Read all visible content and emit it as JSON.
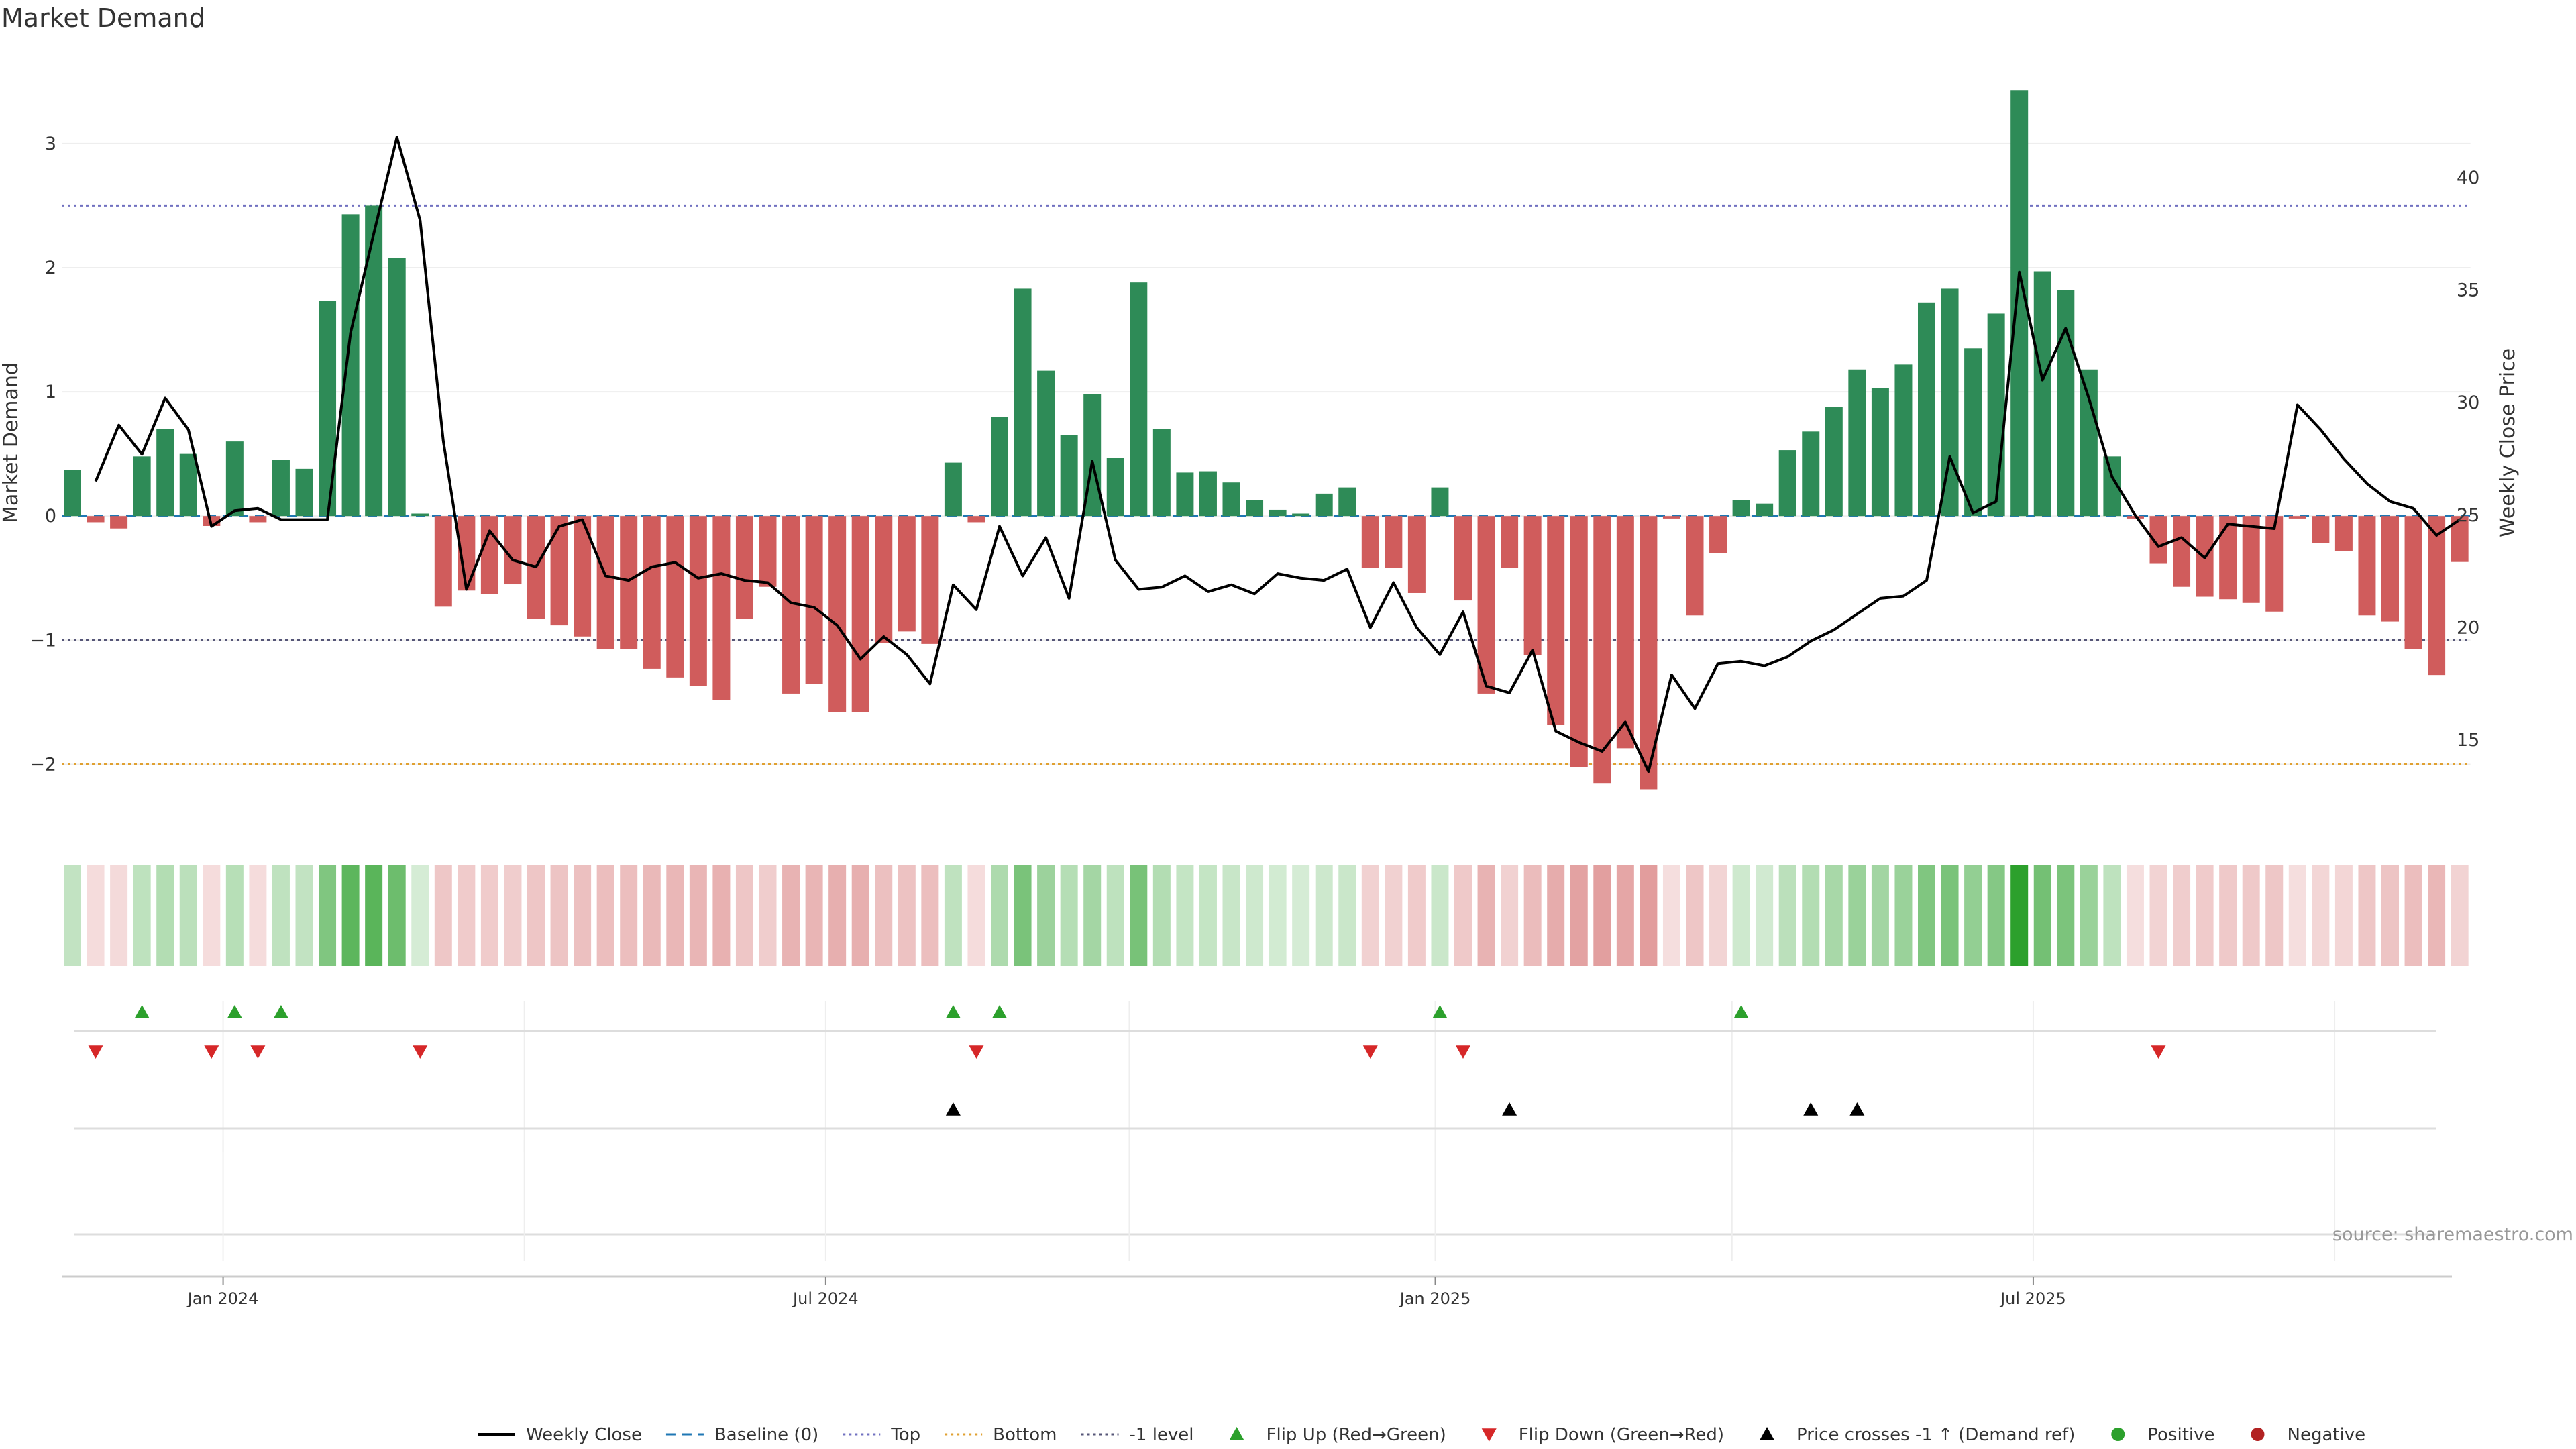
{
  "chart_data": {
    "type": "bar",
    "title": "Market Demand",
    "ylabel": "Market Demand",
    "y2label": "Weekly Close Price",
    "ylim": [
      -2.5,
      3.75
    ],
    "y2lim": [
      11.16,
      45.66
    ],
    "yticks": [
      {
        "v": -2,
        "label": "−2"
      },
      {
        "v": -1,
        "label": "−1"
      },
      {
        "v": 0,
        "label": "0"
      },
      {
        "v": 1,
        "label": "1"
      },
      {
        "v": 2,
        "label": "2"
      },
      {
        "v": 3,
        "label": "3"
      }
    ],
    "y2ticks": [
      {
        "v": 15,
        "label": "15"
      },
      {
        "v": 20,
        "label": "20"
      },
      {
        "v": 25,
        "label": "25"
      },
      {
        "v": 30,
        "label": "30"
      },
      {
        "v": 35,
        "label": "35"
      },
      {
        "v": 40,
        "label": "40"
      }
    ],
    "xticks": [
      {
        "week": 6.5,
        "label": "Jan 2024"
      },
      {
        "week": 32.5,
        "label": "Jul 2024"
      },
      {
        "week": 58.8,
        "label": "Jan 2025"
      },
      {
        "week": 84.6,
        "label": "Jul 2025"
      }
    ],
    "xgrid_weeks": [
      6.5,
      19.5,
      32.5,
      45.6,
      58.8,
      71.6,
      84.6,
      97.6
    ],
    "hlines": [
      {
        "name": "Top",
        "value": 2.5,
        "color": "#7070c0",
        "dash": "4,5"
      },
      {
        "name": "-1 level",
        "value": -1,
        "color": "#555577",
        "dash": "4,5"
      },
      {
        "name": "Bottom",
        "value": -2,
        "color": "#e0a030",
        "dash": "4,5"
      }
    ],
    "colors": {
      "positive": "#2e8b57",
      "negative": "#d05c5c",
      "price": "#000000",
      "flip_up": "#2ca02c",
      "flip_down": "#d62728",
      "cross": "#000000",
      "baseline": "#1f77b4",
      "positive_dot": "#2ca02c",
      "negative_dot": "#b22222"
    },
    "demand": [
      0.37,
      -0.05,
      -0.1,
      0.48,
      0.7,
      0.5,
      -0.08,
      0.6,
      -0.05,
      0.45,
      0.38,
      1.73,
      2.43,
      2.5,
      2.08,
      0.02,
      -0.73,
      -0.6,
      -0.63,
      -0.55,
      -0.83,
      -0.88,
      -0.97,
      -1.07,
      -1.07,
      -1.23,
      -1.3,
      -1.37,
      -1.48,
      -0.83,
      -0.57,
      -1.43,
      -1.35,
      -1.58,
      -1.58,
      -1.02,
      -0.93,
      -1.03,
      0.43,
      -0.05,
      0.8,
      1.83,
      1.17,
      0.65,
      0.98,
      0.47,
      1.88,
      0.7,
      0.35,
      0.36,
      0.27,
      0.13,
      0.05,
      0.02,
      0.18,
      0.23,
      -0.42,
      -0.42,
      -0.62,
      0.23,
      -0.68,
      -1.43,
      -0.42,
      -1.12,
      -1.68,
      -2.02,
      -2.15,
      -1.87,
      -2.2,
      -0.02,
      -0.8,
      -0.3,
      0.13,
      0.1,
      0.53,
      0.68,
      0.88,
      1.18,
      1.03,
      1.22,
      1.72,
      1.83,
      1.35,
      1.63,
      3.43,
      1.97,
      1.82,
      1.18,
      0.48,
      -0.02,
      -0.38,
      -0.57,
      -0.65,
      -0.67,
      -0.7,
      -0.77,
      -0.02,
      -0.22,
      -0.28,
      -0.8,
      -0.85,
      -1.07,
      -1.28,
      -0.37
    ],
    "price": [
      null,
      26.5,
      29.0,
      27.7,
      30.2,
      28.8,
      24.5,
      25.2,
      25.3,
      24.8,
      24.8,
      24.8,
      33.1,
      37.5,
      41.8,
      38.1,
      28.3,
      21.7,
      24.3,
      23.0,
      22.7,
      24.5,
      24.8,
      22.3,
      22.1,
      22.7,
      22.9,
      22.2,
      22.4,
      22.1,
      22.0,
      21.1,
      20.9,
      20.1,
      18.6,
      19.6,
      18.8,
      17.5,
      21.9,
      20.8,
      24.5,
      22.3,
      24.0,
      21.3,
      27.4,
      23.0,
      21.7,
      21.8,
      22.3,
      21.6,
      21.9,
      21.5,
      22.4,
      22.2,
      22.1,
      22.6,
      20.0,
      22.0,
      20.0,
      18.8,
      20.7,
      17.4,
      17.1,
      19.0,
      15.4,
      14.9,
      14.5,
      15.8,
      13.6,
      17.9,
      16.4,
      18.4,
      18.5,
      18.3,
      18.7,
      19.4,
      19.9,
      20.6,
      21.3,
      21.4,
      22.1,
      27.6,
      25.1,
      25.6,
      35.8,
      31.0,
      33.3,
      30.2,
      26.7,
      25.0,
      23.6,
      24.0,
      23.1,
      24.6,
      24.5,
      24.4,
      29.9,
      28.8,
      27.5,
      26.4,
      25.6,
      25.3,
      24.1,
      24.8
    ],
    "signals": {
      "flip_up_weeks": [
        3,
        7,
        9,
        38,
        40,
        59,
        72
      ],
      "flip_down_weeks": [
        1,
        6,
        8,
        15,
        39,
        56,
        60,
        90
      ],
      "price_cross_weeks": [
        38,
        62,
        75,
        77
      ]
    },
    "legend": [
      {
        "label": "Weekly Close",
        "kind": "line"
      },
      {
        "label": "Baseline (0)",
        "kind": "dash-blue"
      },
      {
        "label": "Top",
        "kind": "dot-purple"
      },
      {
        "label": "Bottom",
        "kind": "dot-orange"
      },
      {
        "label": "-1 level",
        "kind": "dot-gray"
      },
      {
        "label": "Flip Up (Red→Green)",
        "kind": "tri-up-green"
      },
      {
        "label": "Flip Down (Green→Red)",
        "kind": "tri-down-red"
      },
      {
        "label": "Price crosses -1 ↑ (Demand ref)",
        "kind": "tri-up-black"
      },
      {
        "label": "Positive",
        "kind": "dot-green"
      },
      {
        "label": "Negative",
        "kind": "dot-red"
      }
    ],
    "source": "source: sharemaestro.com"
  }
}
